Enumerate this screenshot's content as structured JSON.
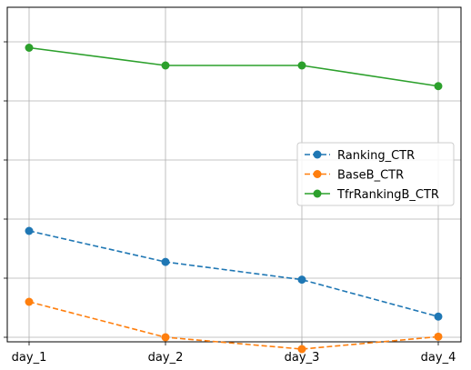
{
  "chart_data": {
    "type": "line",
    "title": "",
    "xlabel": "",
    "ylabel": "",
    "categories": [
      "day_1",
      "day_2",
      "day_3",
      "day_4"
    ],
    "ylim": [
      0,
      10
    ],
    "y_tick_values": [
      1,
      3,
      5,
      7,
      9,
      11
    ],
    "y_tick_labels_visible": false,
    "grid": true,
    "legend": "center-right",
    "series": [
      {
        "name": "Ranking_CTR",
        "values": [
          4.6,
          3.55,
          2.95,
          1.7
        ],
        "color": "#1f77b4",
        "linestyle": "dashed",
        "marker": "circle"
      },
      {
        "name": "BaseB_CTR",
        "values": [
          2.2,
          1.0,
          0.6,
          1.02
        ],
        "color": "#ff7f0e",
        "linestyle": "dashed",
        "marker": "circle"
      },
      {
        "name": "TfrRankingB_CTR",
        "values": [
          10.8,
          10.2,
          10.2,
          9.5
        ],
        "color": "#2ca02c",
        "linestyle": "solid",
        "marker": "circle"
      }
    ]
  }
}
